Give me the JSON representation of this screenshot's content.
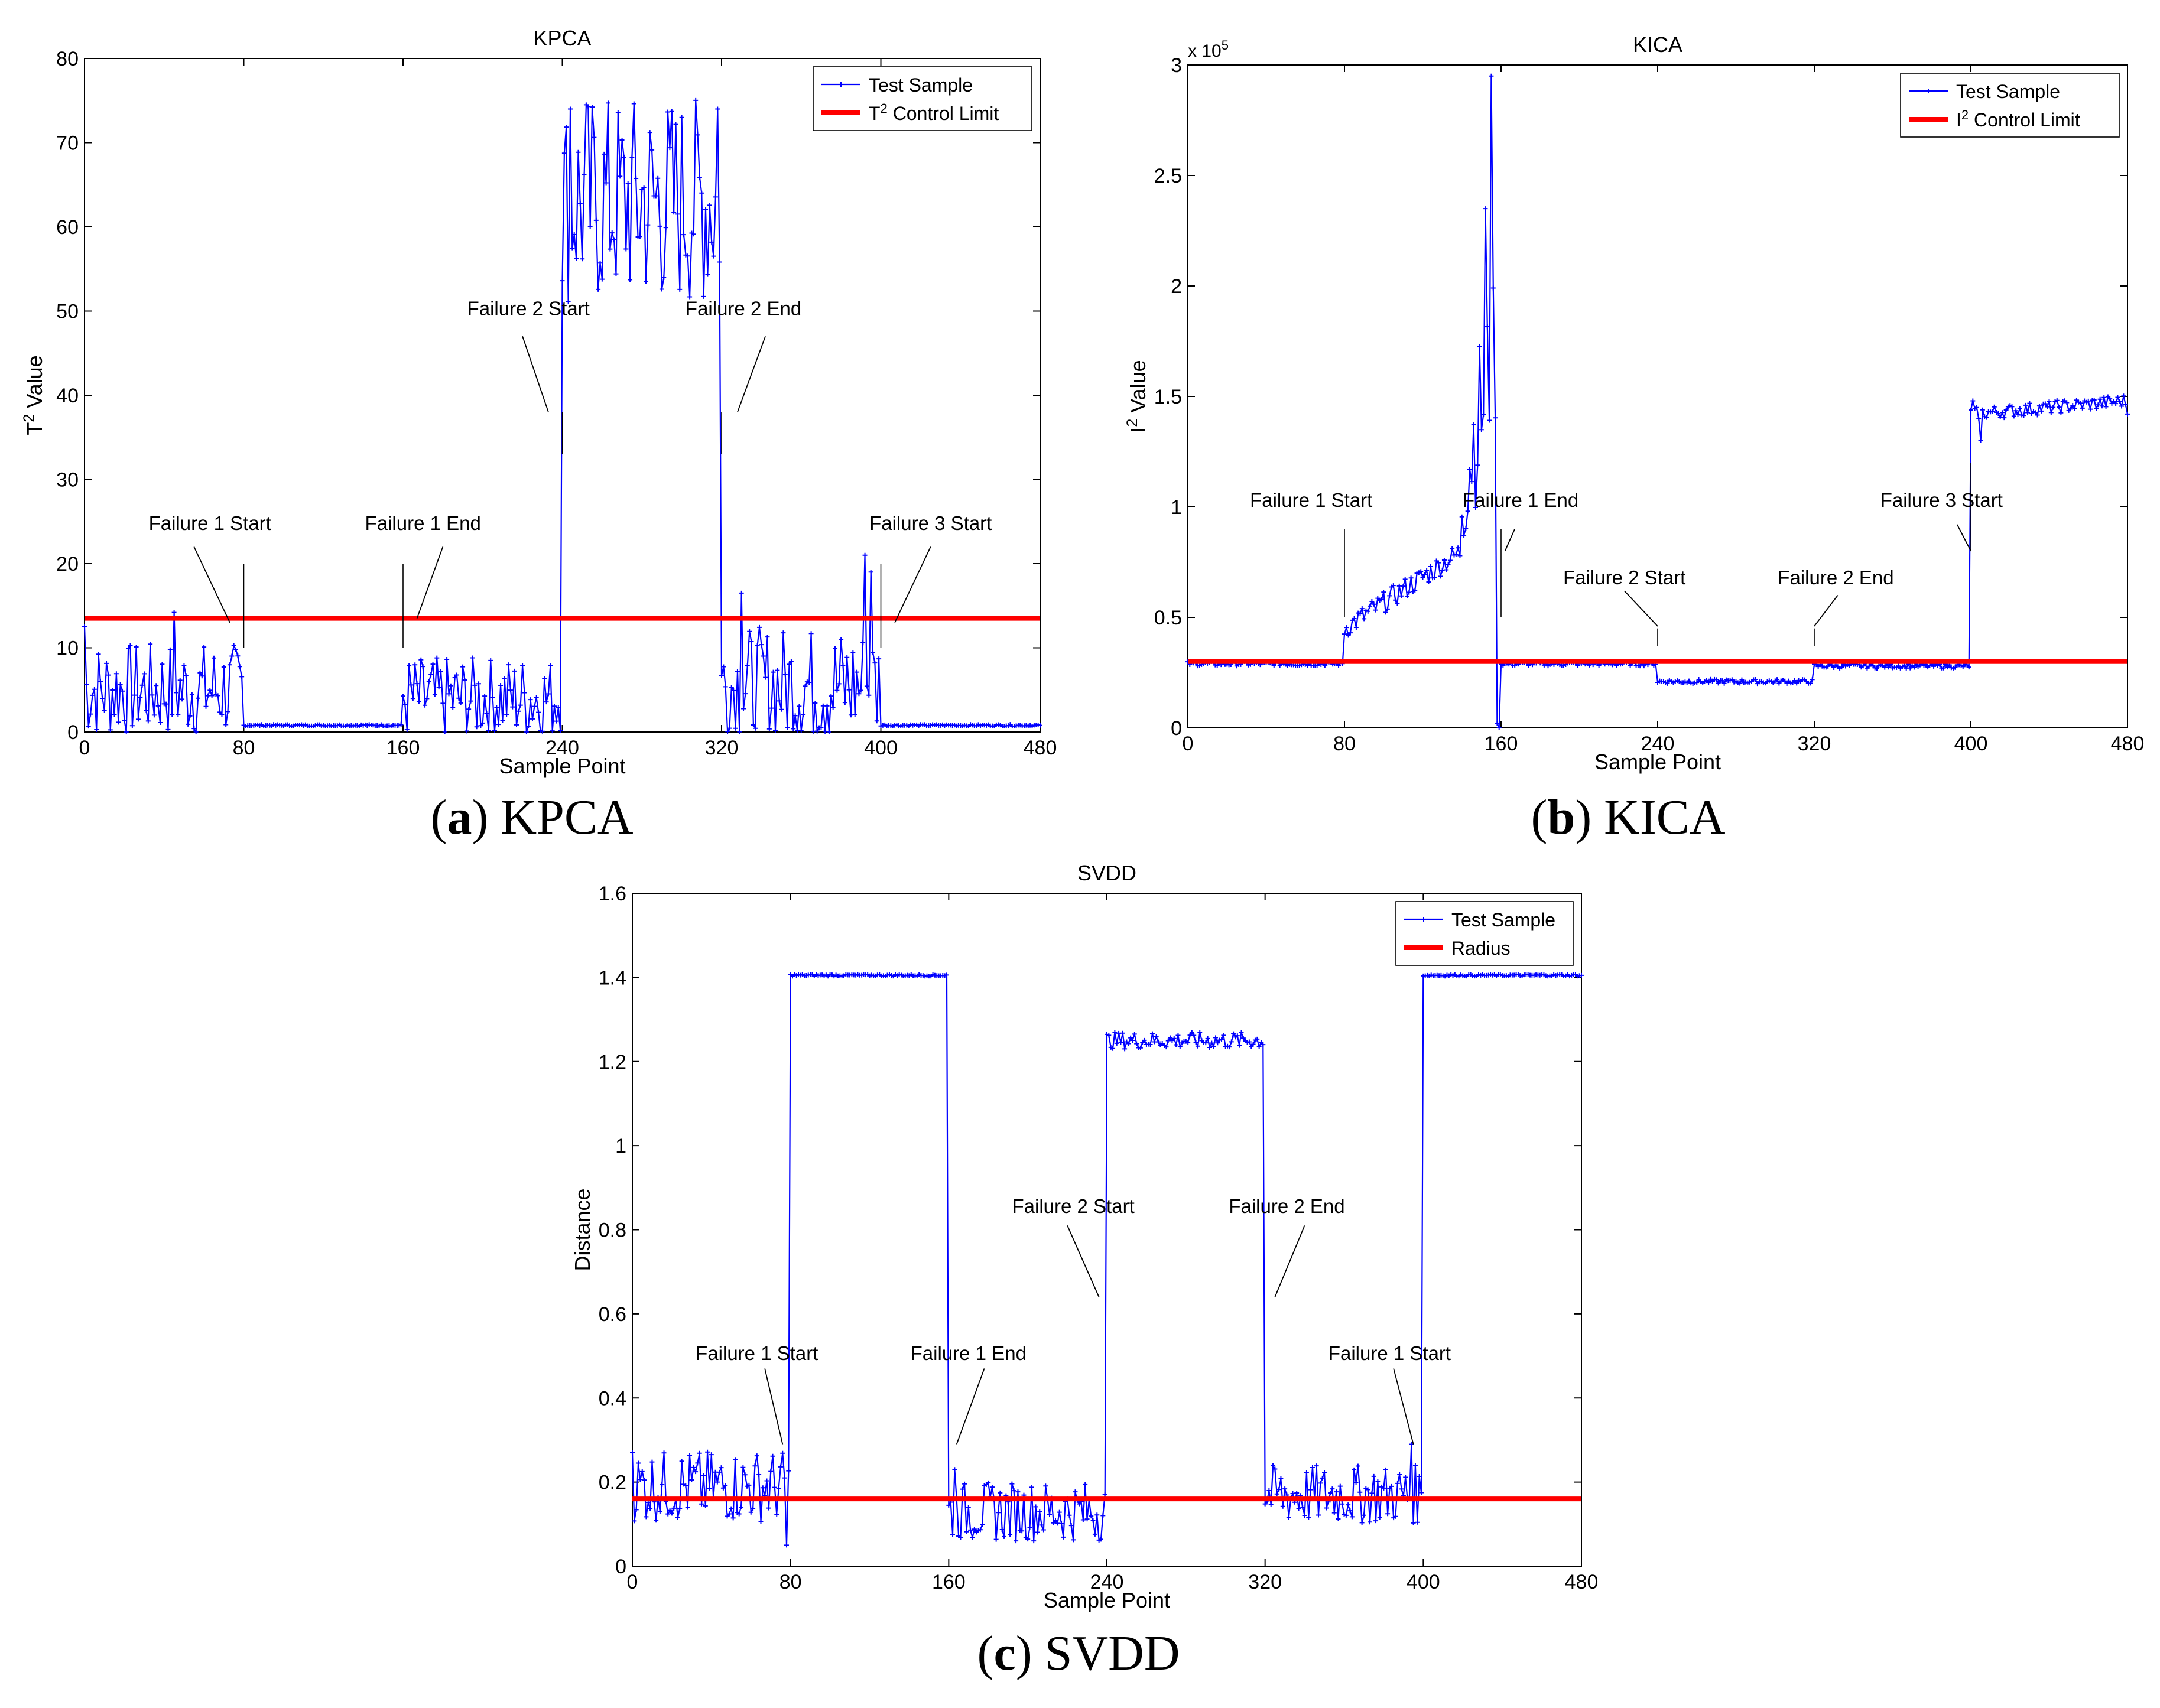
{
  "colors": {
    "series": "#0000ff",
    "limit": "#ff0000",
    "axis": "#000000",
    "background": "#ffffff"
  },
  "captions": [
    {
      "letter": "a",
      "text": "KPCA"
    },
    {
      "letter": "b",
      "text": "KICA"
    },
    {
      "letter": "c",
      "text": "SVDD"
    }
  ],
  "chart_data": [
    {
      "id": "kpca",
      "type": "line",
      "title": "KPCA",
      "xlabel": "Sample Point",
      "ylabel": "T² Value",
      "xlim": [
        0,
        480
      ],
      "ylim": [
        0,
        80
      ],
      "xticks": [
        0,
        80,
        160,
        240,
        320,
        400,
        480
      ],
      "yticks": [
        0,
        10,
        20,
        30,
        40,
        50,
        60,
        70,
        80
      ],
      "legend_position": "top-right",
      "legend": [
        {
          "label": "Test Sample",
          "kind": "series"
        },
        {
          "label": "T² Control Limit",
          "kind": "limit"
        }
      ],
      "control_limit": 13.5,
      "segments": [
        {
          "start": 0,
          "end": 80,
          "base": 5,
          "amp": 4,
          "shape": "jagged"
        },
        {
          "start": 80,
          "end": 160,
          "base": 0.8,
          "amp": 0.1,
          "shape": "flat"
        },
        {
          "start": 160,
          "end": 240,
          "base": 4,
          "amp": 3.5,
          "shape": "jagged"
        },
        {
          "start": 240,
          "end": 320,
          "base": 63,
          "amp": 9,
          "shape": "jagged"
        },
        {
          "start": 320,
          "end": 400,
          "base": 5.5,
          "amp": 5,
          "shape": "jagged"
        },
        {
          "start": 400,
          "end": 480,
          "base": 0.8,
          "amp": 0.1,
          "shape": "flat"
        }
      ],
      "spikes": [
        [
          0,
          12.5
        ],
        [
          45,
          14.2
        ],
        [
          244,
          74
        ],
        [
          252,
          74.5
        ],
        [
          300,
          73
        ],
        [
          318,
          74
        ],
        [
          330,
          16.5
        ],
        [
          392,
          21
        ],
        [
          395,
          19
        ]
      ],
      "annotations": [
        {
          "text": "Failure 1 Start",
          "x": 80,
          "y_from": 10,
          "y_to": 20,
          "label_y": 24,
          "label_dx": -17,
          "line_start": [
            55,
            22
          ],
          "line_end": [
            73,
            13
          ]
        },
        {
          "text": "Failure 1 End",
          "x": 160,
          "y_from": 10,
          "y_to": 20,
          "label_y": 24,
          "label_dx": 10,
          "line_start": [
            180,
            22
          ],
          "line_end": [
            167,
            13.5
          ]
        },
        {
          "text": "Failure 2 Start",
          "x": 240,
          "y_from": 33,
          "y_to": 38,
          "label_y": 49.5,
          "label_dx": -17,
          "line_start": [
            220,
            47
          ],
          "line_end": [
            233,
            38
          ]
        },
        {
          "text": "Failure 2 End",
          "x": 320,
          "y_from": 33,
          "y_to": 38,
          "label_y": 49.5,
          "label_dx": 11,
          "line_start": [
            342,
            47
          ],
          "line_end": [
            328,
            38
          ]
        },
        {
          "text": "Failure 3 Start",
          "x": 400,
          "y_from": 10,
          "y_to": 20,
          "label_y": 24,
          "label_dx": 25,
          "line_start": [
            425,
            22
          ],
          "line_end": [
            407,
            13
          ]
        }
      ]
    },
    {
      "id": "kica",
      "type": "line",
      "title": "KICA",
      "xlabel": "Sample Point",
      "ylabel": "I² Value",
      "xlim": [
        0,
        480
      ],
      "ylim": [
        0,
        3
      ],
      "exponent_label": "x 10",
      "exponent": "5",
      "xticks": [
        0,
        80,
        160,
        240,
        320,
        400,
        480
      ],
      "yticks": [
        0,
        0.5,
        1,
        1.5,
        2,
        2.5,
        3
      ],
      "legend_position": "top-right",
      "legend": [
        {
          "label": "Test Sample",
          "kind": "series"
        },
        {
          "label": "I² Control Limit",
          "kind": "limit"
        }
      ],
      "control_limit": 0.3,
      "segments": [
        {
          "start": 0,
          "end": 80,
          "base": 0.29,
          "amp": 0.01,
          "shape": "flat"
        },
        {
          "start": 80,
          "end": 140,
          "base": 0.45,
          "base_end": 0.8,
          "amp": 0.05,
          "shape": "ramp"
        },
        {
          "start": 140,
          "end": 160,
          "base": 1.1,
          "base_end": 1.8,
          "amp": 0.35,
          "shape": "ramp"
        },
        {
          "start": 160,
          "end": 240,
          "base": 0.29,
          "amp": 0.01,
          "shape": "flat"
        },
        {
          "start": 240,
          "end": 320,
          "base": 0.21,
          "amp": 0.01,
          "shape": "flat"
        },
        {
          "start": 320,
          "end": 400,
          "base": 0.28,
          "amp": 0.01,
          "shape": "flat"
        },
        {
          "start": 400,
          "end": 480,
          "base": 1.42,
          "base_end": 1.48,
          "amp": 0.03,
          "shape": "ramp"
        }
      ],
      "spikes": [
        [
          152,
          2.35
        ],
        [
          155,
          2.95
        ],
        [
          158,
          0.02
        ],
        [
          159,
          0.0
        ],
        [
          401,
          1.48
        ],
        [
          405,
          1.3
        ]
      ],
      "annotations": [
        {
          "text": "Failure 1 Start",
          "x": 80,
          "y_from": 0.5,
          "y_to": 0.9,
          "label_y": 1.0,
          "label_dx": -17,
          "line_start": null,
          "line_end": null
        },
        {
          "text": "Failure 1 End",
          "x": 160,
          "y_from": 0.5,
          "y_to": 0.9,
          "label_y": 1.0,
          "label_dx": 10,
          "line_start": [
            167,
            0.9
          ],
          "line_end": [
            162,
            0.8
          ]
        },
        {
          "text": "Failure 2 Start",
          "x": 240,
          "y_from": 0.45,
          "y_to": 0.37,
          "label_y": 0.65,
          "label_dx": -17,
          "line_start": [
            223,
            0.62
          ],
          "line_end": [
            240,
            0.46
          ]
        },
        {
          "text": "Failure 2 End",
          "x": 320,
          "y_from": 0.45,
          "y_to": 0.37,
          "label_y": 0.65,
          "label_dx": 11,
          "line_start": [
            332,
            0.6
          ],
          "line_end": [
            320,
            0.46
          ]
        },
        {
          "text": "Failure 3 Start",
          "x": 400,
          "y_from": 0.8,
          "y_to": 1.2,
          "label_y": 1.0,
          "label_dx": -15,
          "line_start": [
            393,
            0.92
          ],
          "line_end": [
            400,
            0.8
          ]
        }
      ]
    },
    {
      "id": "svdd",
      "type": "line",
      "title": "SVDD",
      "xlabel": "Sample Point",
      "ylabel": "Distance",
      "xlim": [
        0,
        480
      ],
      "ylim": [
        0,
        1.6
      ],
      "xticks": [
        0,
        80,
        160,
        240,
        320,
        400,
        480
      ],
      "yticks": [
        0,
        0.2,
        0.4,
        0.6,
        0.8,
        1,
        1.2,
        1.4,
        1.6
      ],
      "ytick_labels": [
        "0",
        "0.2",
        "0.4",
        "0.6",
        "0.8",
        "1",
        "1.2",
        "1.4",
        "1.6"
      ],
      "legend_position": "top-right",
      "legend": [
        {
          "label": "Test Sample",
          "kind": "series"
        },
        {
          "label": "Radius",
          "kind": "limit"
        }
      ],
      "control_limit": 0.16,
      "segments": [
        {
          "start": 0,
          "end": 80,
          "base": 0.19,
          "amp": 0.06,
          "shape": "jagged"
        },
        {
          "start": 80,
          "end": 160,
          "base": 1.405,
          "amp": 0.002,
          "shape": "flat"
        },
        {
          "start": 160,
          "end": 240,
          "base": 0.13,
          "amp": 0.05,
          "shape": "jagged"
        },
        {
          "start": 240,
          "end": 320,
          "base": 1.25,
          "amp": 0.02,
          "shape": "flat"
        },
        {
          "start": 320,
          "end": 400,
          "base": 0.17,
          "amp": 0.05,
          "shape": "jagged"
        },
        {
          "start": 400,
          "end": 480,
          "base": 1.405,
          "amp": 0.002,
          "shape": "flat"
        }
      ],
      "spikes": [
        [
          0,
          0.27
        ],
        [
          78,
          0.05
        ],
        [
          163,
          0.23
        ],
        [
          394,
          0.29
        ]
      ],
      "annotations": [
        {
          "text": "Failure 1 Start",
          "x": 80,
          "y_from": 0.28,
          "y_to": 0.28,
          "label_y": 0.49,
          "label_dx": -17,
          "line_start": [
            67,
            0.47
          ],
          "line_end": [
            76,
            0.29
          ]
        },
        {
          "text": "Failure 1 End",
          "x": 160,
          "y_from": 0.28,
          "y_to": 0.28,
          "label_y": 0.49,
          "label_dx": 10,
          "line_start": [
            178,
            0.47
          ],
          "line_end": [
            164,
            0.29
          ]
        },
        {
          "text": "Failure 2 Start",
          "x": 240,
          "y_from": 0.63,
          "y_to": 0.63,
          "label_y": 0.84,
          "label_dx": -17,
          "line_start": [
            220,
            0.81
          ],
          "line_end": [
            236,
            0.64
          ]
        },
        {
          "text": "Failure 2 End",
          "x": 320,
          "y_from": 0.63,
          "y_to": 0.63,
          "label_y": 0.84,
          "label_dx": 11,
          "line_start": [
            340,
            0.81
          ],
          "line_end": [
            325,
            0.64
          ]
        },
        {
          "text": "Failure 1 Start",
          "x": 400,
          "y_from": 0.28,
          "y_to": 0.28,
          "label_y": 0.49,
          "label_dx": -17,
          "line_start": [
            385,
            0.47
          ],
          "line_end": [
            395,
            0.29
          ]
        }
      ]
    }
  ]
}
